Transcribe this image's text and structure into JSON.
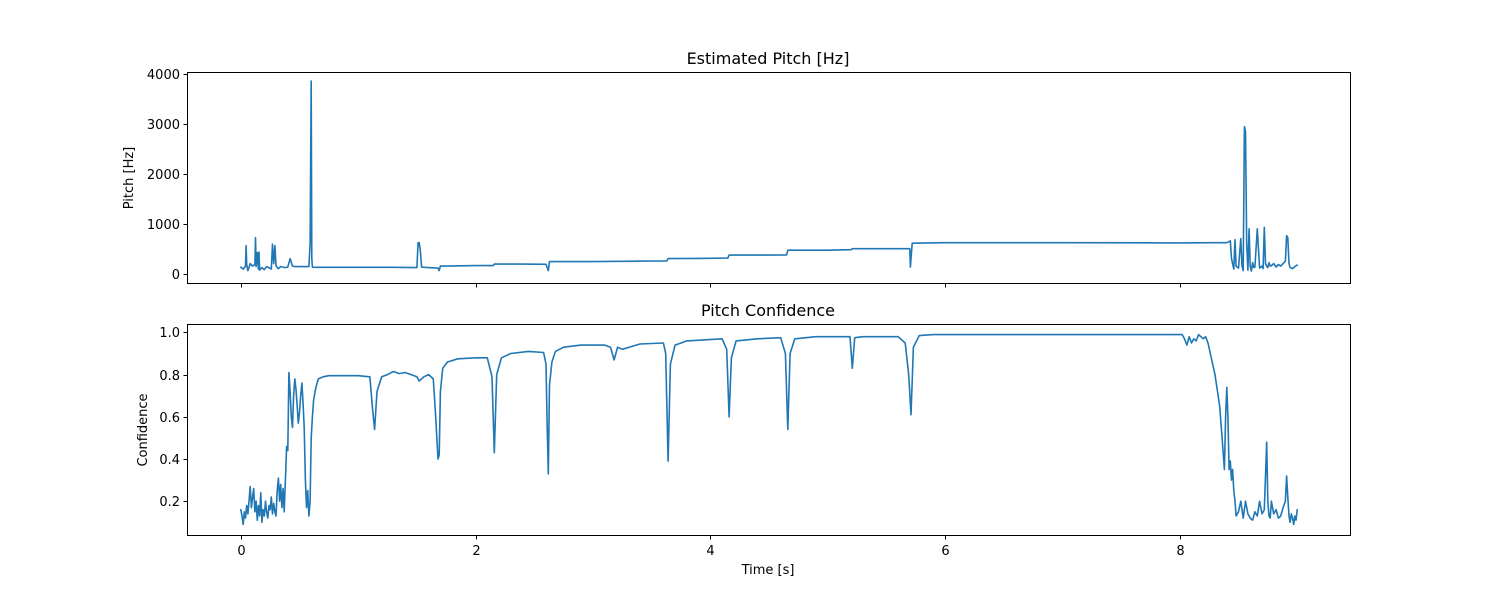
{
  "chart_data": [
    {
      "type": "line",
      "title": "Estimated Pitch [Hz]",
      "xlabel": "",
      "ylabel": "Pitch [Hz]",
      "xlim": [
        -0.45,
        9.45
      ],
      "ylim": [
        -190,
        4050
      ],
      "x_ticks": [
        0,
        2,
        4,
        6,
        8
      ],
      "x_tick_labels": [
        "",
        "",
        "",
        "",
        ""
      ],
      "y_ticks": [
        0,
        1000,
        2000,
        3000,
        4000
      ],
      "y_tick_labels": [
        "0",
        "1000",
        "2000",
        "3000",
        "4000"
      ],
      "grid": false,
      "color": "#1f77b4",
      "x": [
        0.0,
        0.02,
        0.04,
        0.045,
        0.05,
        0.06,
        0.07,
        0.08,
        0.1,
        0.12,
        0.125,
        0.13,
        0.14,
        0.15,
        0.155,
        0.16,
        0.17,
        0.18,
        0.2,
        0.22,
        0.24,
        0.26,
        0.27,
        0.28,
        0.29,
        0.3,
        0.31,
        0.32,
        0.34,
        0.36,
        0.38,
        0.4,
        0.42,
        0.44,
        0.46,
        0.5,
        0.55,
        0.58,
        0.59,
        0.6,
        0.605,
        0.61,
        0.62,
        0.7,
        0.9,
        1.1,
        1.3,
        1.5,
        1.51,
        1.52,
        1.53,
        1.54,
        1.56,
        1.6,
        1.68,
        1.69,
        1.7,
        1.75,
        2.0,
        2.15,
        2.16,
        2.4,
        2.6,
        2.62,
        2.63,
        3.0,
        3.4,
        3.63,
        3.64,
        3.9,
        4.15,
        4.16,
        4.5,
        4.65,
        4.66,
        5.0,
        5.2,
        5.21,
        5.5,
        5.7,
        5.705,
        5.71,
        5.72,
        6.0,
        7.0,
        8.0,
        8.3,
        8.4,
        8.42,
        8.43,
        8.44,
        8.45,
        8.46,
        8.47,
        8.48,
        8.5,
        8.52,
        8.53,
        8.54,
        8.55,
        8.56,
        8.57,
        8.58,
        8.59,
        8.6,
        8.61,
        8.62,
        8.63,
        8.64,
        8.66,
        8.68,
        8.7,
        8.71,
        8.72,
        8.73,
        8.74,
        8.75,
        8.76,
        8.77,
        8.78,
        8.8,
        8.82,
        8.84,
        8.86,
        8.88,
        8.9,
        8.91,
        8.92,
        8.93,
        8.94,
        8.96,
        8.98,
        9.0
      ],
      "values": [
        130,
        90,
        150,
        560,
        180,
        60,
        120,
        200,
        150,
        180,
        720,
        140,
        420,
        90,
        430,
        70,
        100,
        120,
        80,
        140,
        120,
        90,
        590,
        200,
        560,
        160,
        120,
        100,
        140,
        130,
        120,
        130,
        300,
        150,
        140,
        140,
        140,
        140,
        600,
        3870,
        300,
        130,
        125,
        125,
        125,
        125,
        125,
        120,
        620,
        620,
        450,
        130,
        125,
        120,
        110,
        60,
        150,
        150,
        160,
        160,
        190,
        190,
        185,
        60,
        240,
        240,
        250,
        255,
        300,
        305,
        310,
        370,
        370,
        375,
        470,
        470,
        480,
        500,
        500,
        500,
        130,
        300,
        610,
        620,
        620,
        615,
        620,
        620,
        640,
        660,
        300,
        200,
        90,
        680,
        150,
        110,
        700,
        150,
        60,
        2950,
        2850,
        600,
        70,
        900,
        150,
        50,
        220,
        120,
        130,
        900,
        110,
        150,
        100,
        930,
        200,
        150,
        120,
        220,
        150,
        160,
        200,
        130,
        180,
        150,
        200,
        250,
        760,
        720,
        200,
        120,
        100,
        140,
        170
      ]
    },
    {
      "type": "line",
      "title": "Pitch Confidence",
      "xlabel": "Time [s]",
      "ylabel": "Confidence",
      "xlim": [
        -0.45,
        9.45
      ],
      "ylim": [
        0.04,
        1.04
      ],
      "x_ticks": [
        0,
        2,
        4,
        6,
        8
      ],
      "x_tick_labels": [
        "0",
        "2",
        "4",
        "6",
        "8"
      ],
      "y_ticks": [
        0.2,
        0.4,
        0.6,
        0.8,
        1.0
      ],
      "y_tick_labels": [
        "0.2",
        "0.4",
        "0.6",
        "0.8",
        "1.0"
      ],
      "grid": false,
      "color": "#1f77b4",
      "x": [
        0.0,
        0.01,
        0.02,
        0.03,
        0.04,
        0.05,
        0.06,
        0.07,
        0.08,
        0.09,
        0.1,
        0.11,
        0.12,
        0.13,
        0.14,
        0.15,
        0.16,
        0.17,
        0.18,
        0.19,
        0.2,
        0.21,
        0.22,
        0.23,
        0.24,
        0.25,
        0.26,
        0.27,
        0.28,
        0.29,
        0.3,
        0.31,
        0.32,
        0.33,
        0.34,
        0.35,
        0.36,
        0.37,
        0.38,
        0.39,
        0.4,
        0.41,
        0.42,
        0.43,
        0.44,
        0.45,
        0.46,
        0.47,
        0.48,
        0.49,
        0.5,
        0.51,
        0.52,
        0.53,
        0.54,
        0.55,
        0.56,
        0.57,
        0.58,
        0.59,
        0.6,
        0.61,
        0.62,
        0.64,
        0.66,
        0.7,
        0.75,
        0.85,
        1.0,
        1.1,
        1.12,
        1.14,
        1.16,
        1.2,
        1.25,
        1.3,
        1.35,
        1.4,
        1.45,
        1.5,
        1.52,
        1.56,
        1.6,
        1.64,
        1.66,
        1.68,
        1.69,
        1.7,
        1.72,
        1.76,
        1.85,
        2.0,
        2.1,
        2.14,
        2.16,
        2.18,
        2.22,
        2.3,
        2.45,
        2.58,
        2.6,
        2.61,
        2.62,
        2.63,
        2.65,
        2.68,
        2.75,
        2.9,
        3.1,
        3.15,
        3.18,
        3.21,
        3.25,
        3.4,
        3.6,
        3.62,
        3.64,
        3.66,
        3.7,
        3.8,
        4.1,
        4.14,
        4.16,
        4.18,
        4.22,
        4.4,
        4.6,
        4.64,
        4.66,
        4.68,
        4.72,
        4.9,
        5.15,
        5.19,
        5.21,
        5.23,
        5.3,
        5.6,
        5.66,
        5.69,
        5.71,
        5.73,
        5.78,
        5.9,
        6.5,
        7.5,
        8.0,
        8.02,
        8.04,
        8.06,
        8.08,
        8.1,
        8.12,
        8.14,
        8.16,
        8.18,
        8.2,
        8.22,
        8.24,
        8.26,
        8.3,
        8.34,
        8.36,
        8.38,
        8.39,
        8.4,
        8.41,
        8.42,
        8.43,
        8.44,
        8.45,
        8.46,
        8.47,
        8.48,
        8.5,
        8.52,
        8.54,
        8.56,
        8.58,
        8.6,
        8.62,
        8.64,
        8.66,
        8.68,
        8.7,
        8.72,
        8.74,
        8.75,
        8.76,
        8.77,
        8.78,
        8.8,
        8.82,
        8.84,
        8.86,
        8.88,
        8.9,
        8.91,
        8.92,
        8.93,
        8.94,
        8.95,
        8.96,
        8.97,
        8.98,
        8.99,
        9.0
      ],
      "values": [
        0.16,
        0.13,
        0.09,
        0.15,
        0.12,
        0.18,
        0.14,
        0.2,
        0.27,
        0.17,
        0.22,
        0.26,
        0.15,
        0.2,
        0.11,
        0.18,
        0.13,
        0.24,
        0.1,
        0.16,
        0.13,
        0.2,
        0.15,
        0.12,
        0.18,
        0.16,
        0.22,
        0.14,
        0.19,
        0.15,
        0.13,
        0.25,
        0.31,
        0.2,
        0.28,
        0.17,
        0.26,
        0.15,
        0.3,
        0.46,
        0.44,
        0.81,
        0.72,
        0.6,
        0.55,
        0.7,
        0.78,
        0.73,
        0.65,
        0.57,
        0.62,
        0.7,
        0.76,
        0.67,
        0.55,
        0.3,
        0.17,
        0.25,
        0.13,
        0.2,
        0.5,
        0.6,
        0.68,
        0.74,
        0.78,
        0.79,
        0.795,
        0.795,
        0.795,
        0.79,
        0.65,
        0.54,
        0.72,
        0.79,
        0.8,
        0.815,
        0.805,
        0.81,
        0.8,
        0.79,
        0.77,
        0.79,
        0.8,
        0.78,
        0.6,
        0.4,
        0.42,
        0.72,
        0.83,
        0.86,
        0.875,
        0.88,
        0.88,
        0.79,
        0.43,
        0.8,
        0.88,
        0.9,
        0.91,
        0.905,
        0.85,
        0.55,
        0.33,
        0.75,
        0.86,
        0.91,
        0.93,
        0.94,
        0.94,
        0.93,
        0.87,
        0.93,
        0.92,
        0.945,
        0.95,
        0.9,
        0.39,
        0.85,
        0.94,
        0.96,
        0.97,
        0.92,
        0.6,
        0.88,
        0.96,
        0.97,
        0.975,
        0.9,
        0.54,
        0.9,
        0.97,
        0.98,
        0.98,
        0.98,
        0.83,
        0.975,
        0.98,
        0.98,
        0.95,
        0.8,
        0.61,
        0.93,
        0.985,
        0.99,
        0.99,
        0.99,
        0.99,
        0.99,
        0.97,
        0.94,
        0.98,
        0.95,
        0.97,
        0.96,
        0.99,
        0.98,
        0.97,
        0.98,
        0.95,
        0.9,
        0.8,
        0.65,
        0.5,
        0.35,
        0.6,
        0.74,
        0.6,
        0.35,
        0.39,
        0.3,
        0.35,
        0.25,
        0.2,
        0.13,
        0.15,
        0.2,
        0.12,
        0.2,
        0.14,
        0.12,
        0.11,
        0.15,
        0.13,
        0.2,
        0.14,
        0.16,
        0.48,
        0.2,
        0.13,
        0.12,
        0.2,
        0.14,
        0.16,
        0.12,
        0.13,
        0.17,
        0.2,
        0.32,
        0.22,
        0.13,
        0.1,
        0.14,
        0.12,
        0.09,
        0.13,
        0.11,
        0.16
      ]
    }
  ]
}
